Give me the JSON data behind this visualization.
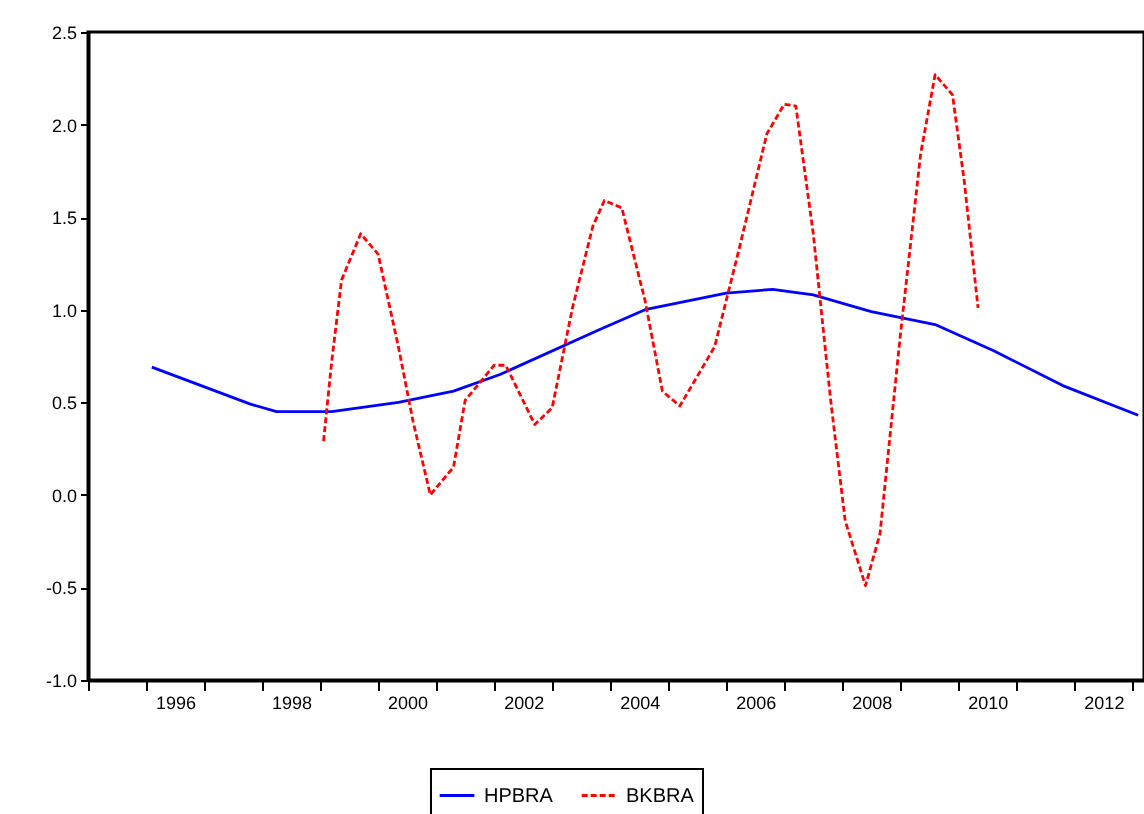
{
  "chart_data": {
    "type": "line",
    "xlim": [
      1994.5,
      2012.7
    ],
    "xticks": [
      {
        "value": 1994.5,
        "label": null
      },
      {
        "value": 1995.5,
        "label": null
      },
      {
        "value": 1996,
        "label": "1996"
      },
      {
        "value": 1996.5,
        "label": null
      },
      {
        "value": 1997.5,
        "label": null
      },
      {
        "value": 1998,
        "label": "1998"
      },
      {
        "value": 1998.5,
        "label": null
      },
      {
        "value": 1999.5,
        "label": null
      },
      {
        "value": 2000,
        "label": "2000"
      },
      {
        "value": 2000.5,
        "label": null
      },
      {
        "value": 2001.5,
        "label": null
      },
      {
        "value": 2002,
        "label": "2002"
      },
      {
        "value": 2002.5,
        "label": null
      },
      {
        "value": 2003.5,
        "label": null
      },
      {
        "value": 2004,
        "label": "2004"
      },
      {
        "value": 2004.5,
        "label": null
      },
      {
        "value": 2005.5,
        "label": null
      },
      {
        "value": 2006,
        "label": "2006"
      },
      {
        "value": 2006.5,
        "label": null
      },
      {
        "value": 2007.5,
        "label": null
      },
      {
        "value": 2008,
        "label": "2008"
      },
      {
        "value": 2008.5,
        "label": null
      },
      {
        "value": 2009.5,
        "label": null
      },
      {
        "value": 2010,
        "label": "2010"
      },
      {
        "value": 2010.5,
        "label": null
      },
      {
        "value": 2011.5,
        "label": null
      },
      {
        "value": 2012,
        "label": "2012"
      },
      {
        "value": 2012.5,
        "label": null
      }
    ],
    "ylim": [
      -1.0,
      2.5
    ],
    "yticks": [
      {
        "value": -1,
        "label": "-1.0"
      },
      {
        "value": -0.5,
        "label": "-0.5"
      },
      {
        "value": 0,
        "label": "0.0"
      },
      {
        "value": 0.5,
        "label": "0.5"
      },
      {
        "value": 1,
        "label": "1.0"
      },
      {
        "value": 1.5,
        "label": "1.5"
      },
      {
        "value": 2,
        "label": "2.0"
      },
      {
        "value": 2.5,
        "label": "2.5"
      }
    ],
    "grid": false,
    "legend": "bottom",
    "series": [
      {
        "name": "HPBRA",
        "color": "#0000ff",
        "line_style": "solid",
        "x": [
          1995.6,
          1997.3,
          1997.75,
          1998.7,
          1999.85,
          2000.8,
          2001.6,
          2003.3,
          2004.1,
          2005.5,
          2006.3,
          2007.0,
          2008.0,
          2009.1,
          2010.1,
          2011.3,
          2012.6
        ],
        "values": [
          0.69,
          0.49,
          0.45,
          0.45,
          0.5,
          0.56,
          0.65,
          0.89,
          1.0,
          1.09,
          1.11,
          1.08,
          0.99,
          0.92,
          0.78,
          0.59,
          0.43
        ]
      },
      {
        "name": "BKBRA",
        "color": "#ff0000",
        "line_style": "dashed",
        "x": [
          1998.56,
          1998.7,
          1998.87,
          1999.2,
          1999.5,
          1999.85,
          2000.1,
          2000.4,
          2000.8,
          2001.0,
          2001.5,
          2001.7,
          2002.2,
          2002.5,
          2002.85,
          2003.2,
          2003.4,
          2003.7,
          2004.1,
          2004.4,
          2004.7,
          2005.3,
          2005.7,
          2006.2,
          2006.5,
          2006.7,
          2007.0,
          2007.3,
          2007.55,
          2007.9,
          2008.15,
          2008.5,
          2008.85,
          2009.1,
          2009.4,
          2009.6,
          2009.84
        ],
        "values": [
          0.29,
          0.72,
          1.16,
          1.41,
          1.3,
          0.8,
          0.4,
          0.0,
          0.15,
          0.51,
          0.7,
          0.7,
          0.38,
          0.47,
          1.01,
          1.45,
          1.59,
          1.55,
          1.05,
          0.56,
          0.48,
          0.8,
          1.3,
          1.95,
          2.11,
          2.1,
          1.41,
          0.51,
          -0.14,
          -0.49,
          -0.21,
          0.86,
          1.84,
          2.27,
          2.16,
          1.7,
          1.01
        ]
      }
    ]
  }
}
